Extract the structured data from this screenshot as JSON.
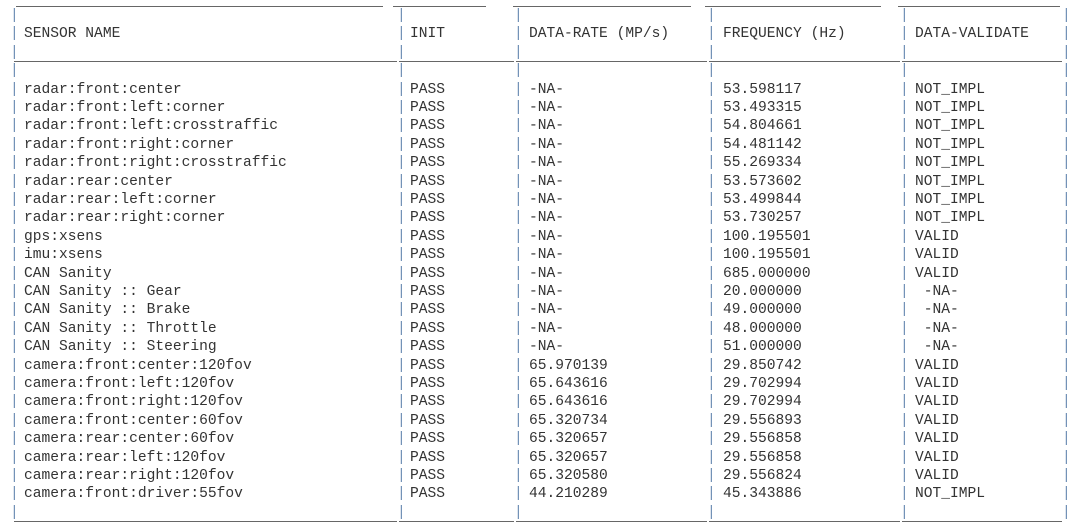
{
  "colors": {
    "text": "#333333",
    "pipe": "#6f8fb5",
    "rule": "#666666"
  },
  "table": {
    "headers": [
      "SENSOR NAME",
      "INIT",
      "DATA-RATE (MP/s)",
      "FREQUENCY (Hz)",
      "DATA-VALIDATE"
    ],
    "rows": [
      [
        "radar:front:center",
        "PASS",
        "-NA-",
        "53.598117",
        "NOT_IMPL"
      ],
      [
        "radar:front:left:corner",
        "PASS",
        "-NA-",
        "53.493315",
        "NOT_IMPL"
      ],
      [
        "radar:front:left:crosstraffic",
        "PASS",
        "-NA-",
        "54.804661",
        "NOT_IMPL"
      ],
      [
        "radar:front:right:corner",
        "PASS",
        "-NA-",
        "54.481142",
        "NOT_IMPL"
      ],
      [
        "radar:front:right:crosstraffic",
        "PASS",
        "-NA-",
        "55.269334",
        "NOT_IMPL"
      ],
      [
        "radar:rear:center",
        "PASS",
        "-NA-",
        "53.573602",
        "NOT_IMPL"
      ],
      [
        "radar:rear:left:corner",
        "PASS",
        "-NA-",
        "53.499844",
        "NOT_IMPL"
      ],
      [
        "radar:rear:right:corner",
        "PASS",
        "-NA-",
        "53.730257",
        "NOT_IMPL"
      ],
      [
        "gps:xsens",
        "PASS",
        "-NA-",
        "100.195501",
        "VALID"
      ],
      [
        "imu:xsens",
        "PASS",
        "-NA-",
        "100.195501",
        "VALID"
      ],
      [
        "CAN Sanity",
        "PASS",
        "-NA-",
        "685.000000",
        "VALID"
      ],
      [
        "CAN Sanity :: Gear",
        "PASS",
        "-NA-",
        "20.000000",
        " -NA-"
      ],
      [
        "CAN Sanity :: Brake",
        "PASS",
        "-NA-",
        "49.000000",
        " -NA-"
      ],
      [
        "CAN Sanity :: Throttle",
        "PASS",
        "-NA-",
        "48.000000",
        " -NA-"
      ],
      [
        "CAN Sanity :: Steering",
        "PASS",
        "-NA-",
        "51.000000",
        " -NA-"
      ],
      [
        "camera:front:center:120fov",
        "PASS",
        "65.970139",
        "29.850742",
        "VALID"
      ],
      [
        "camera:front:left:120fov",
        "PASS",
        "65.643616",
        "29.702994",
        "VALID"
      ],
      [
        "camera:front:right:120fov",
        "PASS",
        "65.643616",
        "29.702994",
        "VALID"
      ],
      [
        "camera:front:center:60fov",
        "PASS",
        "65.320734",
        "29.556893",
        "VALID"
      ],
      [
        "camera:rear:center:60fov",
        "PASS",
        "65.320657",
        "29.556858",
        "VALID"
      ],
      [
        "camera:rear:left:120fov",
        "PASS",
        "65.320657",
        "29.556858",
        "VALID"
      ],
      [
        "camera:rear:right:120fov",
        "PASS",
        "65.320580",
        "29.556824",
        "VALID"
      ],
      [
        "camera:front:driver:55fov",
        "PASS",
        "44.210289",
        "45.343886",
        "NOT_IMPL"
      ]
    ]
  }
}
